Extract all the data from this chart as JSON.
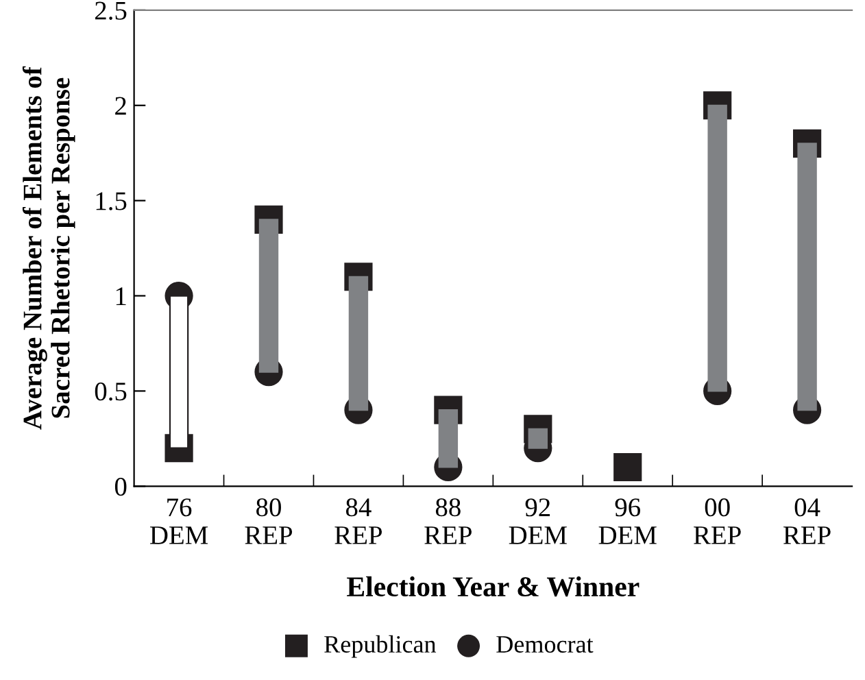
{
  "chart_data": {
    "type": "bar",
    "xlabel": "Election Year & Winner",
    "ylabel": "Average Number of Elements of\nSacred Rhetoric per Response",
    "categories": [
      "76\nDEM",
      "80\nREP",
      "84\nREP",
      "88\nREP",
      "92\nDEM",
      "96\nDEM",
      "00\nREP",
      "04\nREP"
    ],
    "ylim": [
      0,
      2.5
    ],
    "yticks": [
      0,
      0.5,
      1,
      1.5,
      2,
      2.5
    ],
    "grid": false,
    "legend": "bottom",
    "series": [
      {
        "colors": [
          "#ffffff",
          "#808285",
          "#808285",
          "#808285",
          "#808285",
          "#808285",
          "#808285",
          "#808285"
        ],
        "base": [
          0.2,
          0.6,
          0.4,
          0.1,
          0.2,
          null,
          0.5,
          0.4
        ],
        "values": [
          0.8,
          0.8,
          0.7,
          0.3,
          0.1,
          null,
          1.5,
          1.4
        ]
      },
      {
        "type": "scatter",
        "name": "Republican",
        "color": "#231f20",
        "marker": "square",
        "values": [
          0.2,
          1.4,
          1.1,
          0.4,
          0.3,
          0.1,
          2.0,
          1.8
        ]
      },
      {
        "type": "scatter",
        "name": "Democrat",
        "color": "#231f20",
        "marker": "circle",
        "values": [
          1.0,
          0.6,
          0.4,
          0.1,
          0.2,
          null,
          0.5,
          0.4
        ]
      }
    ]
  }
}
